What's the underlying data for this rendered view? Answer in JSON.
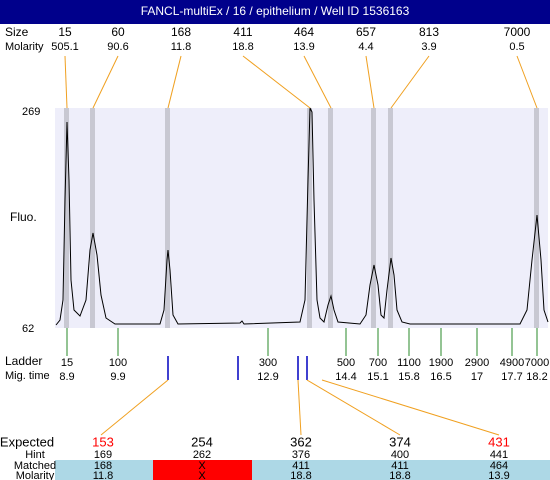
{
  "header": {
    "title": "FANCL-multiEx / 16 / epithelium / Well ID 1536163"
  },
  "peaks": {
    "size_label": "Size",
    "molarity_label": "Molarity",
    "sizes": [
      15,
      60,
      168,
      411,
      464,
      657,
      813,
      7000
    ],
    "molarity": [
      505.1,
      90.6,
      11.8,
      18.8,
      13.9,
      4.4,
      3.9,
      0.5
    ]
  },
  "axis": {
    "label": "Fluo.",
    "top": 269,
    "bottom": 62
  },
  "ladder": {
    "label": "Ladder",
    "time_label": "Mig. time",
    "sizes": [
      15,
      100,
      300,
      500,
      700,
      1100,
      1900,
      2900,
      4900,
      7000
    ],
    "times": [
      8.9,
      9.9,
      12.9,
      14.4,
      15.1,
      15.8,
      16.5,
      17,
      17.7,
      18.2
    ]
  },
  "table": {
    "row_labels": [
      "Expected",
      "Hint",
      "Matched",
      "Molarity"
    ],
    "expected": [
      153,
      254,
      362,
      374,
      431
    ],
    "hint": [
      169,
      262,
      376,
      400,
      441
    ],
    "matched": [
      168,
      "X",
      411,
      411,
      464
    ],
    "molarity": [
      11.8,
      "X",
      18.8,
      18.8,
      13.9
    ]
  }
}
